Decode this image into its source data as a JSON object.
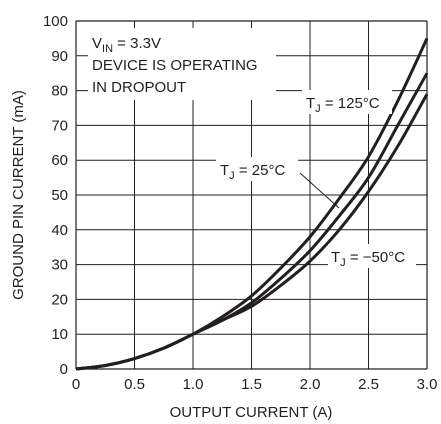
{
  "chart_data": {
    "type": "line",
    "xlabel": "OUTPUT CURRENT (A)",
    "ylabel": "GROUND PIN CURRENT (mA)",
    "xlim": [
      0,
      3.0
    ],
    "ylim": [
      0,
      100
    ],
    "x_ticks": [
      "0",
      "0.5",
      "1.0",
      "1.5",
      "2.0",
      "2.5",
      "3.0"
    ],
    "y_ticks": [
      "0",
      "10",
      "20",
      "30",
      "40",
      "50",
      "60",
      "70",
      "80",
      "90",
      "100"
    ],
    "grid": true,
    "annotation": {
      "line1_base": "V",
      "line1_sub": "IN",
      "line1_rest": " = 3.3V",
      "line2": "DEVICE IS OPERATING",
      "line3": "IN DROPOUT"
    },
    "series": [
      {
        "name": "TJ = 125°C",
        "label_base": "T",
        "label_sub": "J",
        "label_rest": " = 125°C",
        "x": [
          0,
          0.25,
          0.5,
          0.75,
          1.0,
          1.25,
          1.5,
          1.75,
          2.0,
          2.25,
          2.5,
          2.75,
          3.0
        ],
        "y": [
          0,
          1,
          3,
          6,
          10,
          15,
          21,
          29,
          38,
          49,
          61,
          77,
          95
        ]
      },
      {
        "name": "TJ = 25°C",
        "label_base": "T",
        "label_sub": "J",
        "label_rest": " = 25°C",
        "x": [
          0,
          0.25,
          0.5,
          0.75,
          1.0,
          1.25,
          1.5,
          1.75,
          2.0,
          2.25,
          2.5,
          2.75,
          3.0
        ],
        "y": [
          0,
          1,
          3,
          6,
          10,
          14,
          19,
          26,
          34,
          44,
          55,
          70,
          85
        ]
      },
      {
        "name": "TJ = -50°C",
        "label_base": "T",
        "label_sub": "J",
        "label_rest": " = −50°C",
        "x": [
          0,
          0.25,
          0.5,
          0.75,
          1.0,
          1.25,
          1.5,
          1.75,
          2.0,
          2.25,
          2.5,
          2.75,
          3.0
        ],
        "y": [
          0,
          1,
          3,
          6,
          10,
          14,
          18,
          24,
          31,
          40,
          51,
          64,
          79
        ]
      }
    ]
  }
}
